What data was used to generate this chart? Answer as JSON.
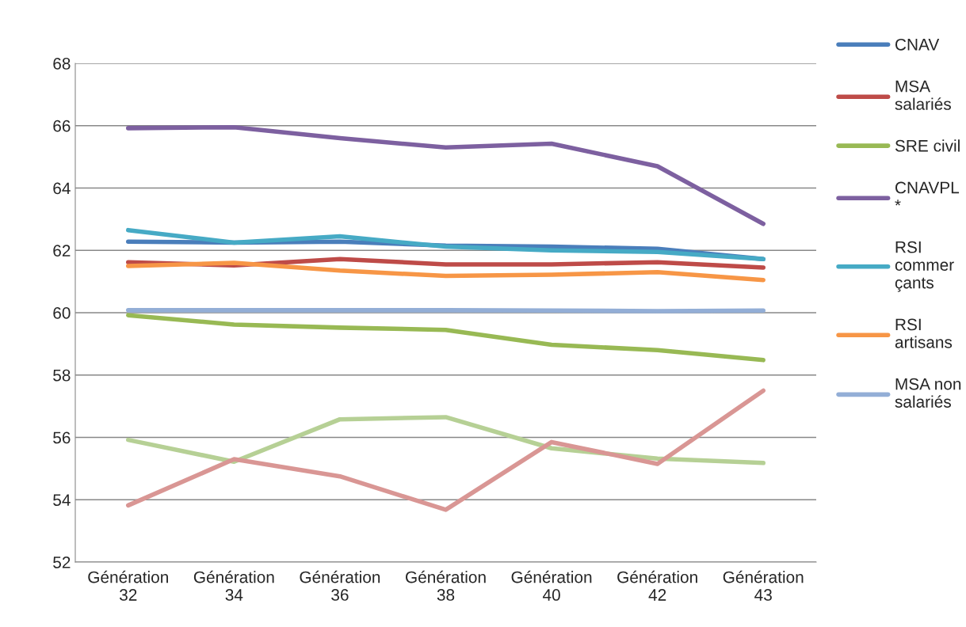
{
  "chart_data": {
    "type": "line",
    "categories": [
      "Génération\n32",
      "Génération\n34",
      "Génération\n36",
      "Génération\n38",
      "Génération\n40",
      "Génération\n42",
      "Génération\n43"
    ],
    "ylim": [
      52,
      68
    ],
    "yticks": [
      52,
      54,
      56,
      58,
      60,
      62,
      64,
      66,
      68
    ],
    "grid": "y",
    "legend": "right",
    "marker": "none",
    "line_style": "solid",
    "series": [
      {
        "name": "CNAV",
        "color": "#4a7ebb",
        "values": [
          62.28,
          62.25,
          62.28,
          62.15,
          62.12,
          62.05,
          61.72
        ]
      },
      {
        "name": "MSA\nsalariés",
        "color": "#be4b48",
        "values": [
          61.62,
          61.52,
          61.72,
          61.55,
          61.55,
          61.62,
          61.45
        ]
      },
      {
        "name": "SRE civil",
        "color": "#98b954",
        "values": [
          59.92,
          59.62,
          59.52,
          59.45,
          58.97,
          58.8,
          58.48
        ]
      },
      {
        "name": "CNAVPL\n*",
        "color": "#7d60a0",
        "values": [
          65.92,
          65.95,
          65.6,
          65.3,
          65.42,
          64.7,
          62.85
        ]
      },
      {
        "name": "RSI\ncommer\nçants",
        "color": "#46aac5",
        "values": [
          62.65,
          62.25,
          62.45,
          62.12,
          62.0,
          61.95,
          61.72
        ]
      },
      {
        "name": "RSI\nartisans",
        "color": "#f79646",
        "values": [
          61.5,
          61.6,
          61.35,
          61.18,
          61.22,
          61.3,
          61.05
        ]
      },
      {
        "name": "MSA non\nsalariés",
        "color": "#93aed6",
        "values": [
          60.08,
          60.08,
          60.08,
          60.08,
          60.07,
          60.05,
          60.07
        ]
      },
      {
        "color": "#b6d095",
        "values": [
          55.92,
          55.22,
          56.58,
          56.65,
          55.65,
          55.32,
          55.18
        ]
      },
      {
        "color": "#d99694",
        "values": [
          53.82,
          55.3,
          54.75,
          53.68,
          55.85,
          55.15,
          57.5
        ]
      }
    ]
  }
}
